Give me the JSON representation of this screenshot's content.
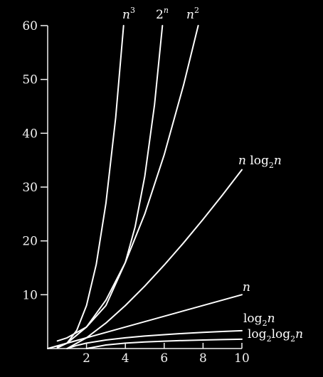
{
  "colors": {
    "background": "#000000",
    "axis": "#f2f2f2",
    "curve": "#ffffff"
  },
  "chart_data": {
    "type": "line",
    "title": "",
    "xlabel": "",
    "ylabel": "",
    "xlim": [
      0,
      10
    ],
    "ylim": [
      0,
      60
    ],
    "x_ticks": [
      {
        "value": 2,
        "label": "2"
      },
      {
        "value": 4,
        "label": "4"
      },
      {
        "value": 6,
        "label": "6"
      },
      {
        "value": 8,
        "label": "8"
      },
      {
        "value": 10,
        "label": "10"
      }
    ],
    "y_ticks": [
      {
        "value": 10,
        "label": "10"
      },
      {
        "value": 20,
        "label": "20"
      },
      {
        "value": 30,
        "label": "30"
      },
      {
        "value": 40,
        "label": "40"
      },
      {
        "value": 50,
        "label": "50"
      },
      {
        "value": 60,
        "label": "60"
      }
    ],
    "grid": false,
    "legend": "none (curves labeled at their ends)",
    "series": [
      {
        "name": "n³",
        "label_parts": [
          {
            "text": "n",
            "italic": true
          },
          {
            "text": "3",
            "sup": true
          }
        ],
        "x": [
          0.5,
          1,
          1.5,
          2,
          2.5,
          3,
          3.5,
          3.91
        ],
        "y": [
          0.13,
          1,
          3.38,
          8,
          15.63,
          27,
          42.88,
          60
        ]
      },
      {
        "name": "2ⁿ",
        "label_parts": [
          {
            "text": "2"
          },
          {
            "text": "n",
            "italic": true,
            "sup": true
          }
        ],
        "x": [
          0.5,
          1,
          2,
          3,
          4,
          4.5,
          5,
          5.5,
          5.91
        ],
        "y": [
          1.41,
          2,
          4,
          8,
          16,
          22.6,
          32,
          45.3,
          60
        ]
      },
      {
        "name": "n²",
        "label_parts": [
          {
            "text": "n",
            "italic": true
          },
          {
            "text": "2",
            "sup": true
          }
        ],
        "x": [
          0.5,
          1,
          2,
          3,
          4,
          5,
          6,
          7,
          7.75
        ],
        "y": [
          0.25,
          1,
          4,
          9,
          16,
          25,
          36,
          49,
          60
        ]
      },
      {
        "name": "n log₂n",
        "label_parts": [
          {
            "text": "n",
            "italic": true
          },
          {
            "text": " log"
          },
          {
            "text": "2",
            "sub": true
          },
          {
            "text": "n",
            "italic": true
          }
        ],
        "x": [
          1,
          2,
          3,
          4,
          5,
          6,
          7,
          8,
          9,
          10
        ],
        "y": [
          0,
          2,
          4.75,
          8,
          11.61,
          15.51,
          19.65,
          24,
          28.53,
          33.22
        ]
      },
      {
        "name": "n",
        "label_parts": [
          {
            "text": "n",
            "italic": true
          }
        ],
        "x": [
          0,
          10
        ],
        "y": [
          0,
          10
        ]
      },
      {
        "name": "log₂n",
        "label_parts": [
          {
            "text": "log"
          },
          {
            "text": "2",
            "sub": true
          },
          {
            "text": "n",
            "italic": true
          }
        ],
        "x": [
          1,
          1.5,
          2,
          3,
          4,
          5,
          6,
          7,
          8,
          9,
          10
        ],
        "y": [
          0,
          0.58,
          1,
          1.58,
          2,
          2.32,
          2.58,
          2.81,
          3,
          3.17,
          3.32
        ]
      },
      {
        "name": "log₂log₂n",
        "label_parts": [
          {
            "text": "log"
          },
          {
            "text": "2",
            "sub": true
          },
          {
            "text": "log"
          },
          {
            "text": "2",
            "sub": true
          },
          {
            "text": "n",
            "italic": true
          }
        ],
        "x": [
          2,
          3,
          4,
          5,
          6,
          7,
          8,
          9,
          10
        ],
        "y": [
          0,
          0.66,
          1,
          1.22,
          1.37,
          1.49,
          1.58,
          1.66,
          1.73
        ]
      }
    ]
  }
}
